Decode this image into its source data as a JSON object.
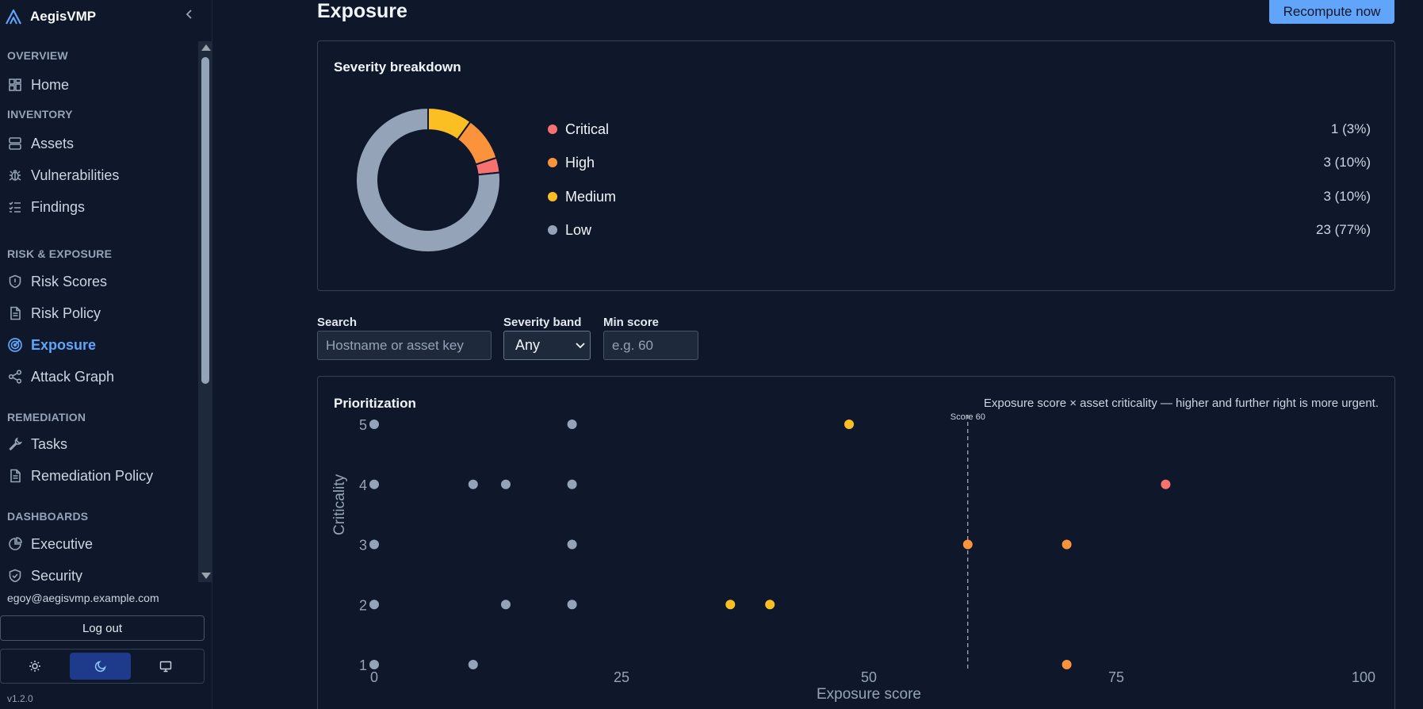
{
  "brand": {
    "name": "AegisVMP",
    "collapse_icon": "chevron-left-icon"
  },
  "sidebar": {
    "sections": [
      {
        "label": "OVERVIEW",
        "items": [
          {
            "label": "Home",
            "icon": "dashboard-grid-icon"
          }
        ]
      },
      {
        "label": "INVENTORY",
        "items": [
          {
            "label": "Assets",
            "icon": "server-icon"
          },
          {
            "label": "Vulnerabilities",
            "icon": "bug-icon"
          },
          {
            "label": "Findings",
            "icon": "checklist-icon"
          }
        ]
      },
      {
        "label": "RISK & EXPOSURE",
        "items": [
          {
            "label": "Risk Scores",
            "icon": "shield-alert-icon"
          },
          {
            "label": "Risk Policy",
            "icon": "document-icon"
          },
          {
            "label": "Exposure",
            "icon": "radar-icon",
            "active": true
          },
          {
            "label": "Attack Graph",
            "icon": "share-graph-icon"
          }
        ]
      },
      {
        "label": "REMEDIATION",
        "items": [
          {
            "label": "Tasks",
            "icon": "wrench-icon"
          },
          {
            "label": "Remediation Policy",
            "icon": "document-icon"
          }
        ]
      },
      {
        "label": "DASHBOARDS",
        "items": [
          {
            "label": "Executive",
            "icon": "pie-chart-icon"
          },
          {
            "label": "Security",
            "icon": "shield-check-icon"
          }
        ]
      }
    ],
    "user_email": "egoy@aegisvmp.example.com",
    "logout_label": "Log out",
    "theme_options": [
      "sun-icon",
      "moon-icon",
      "monitor-icon"
    ],
    "theme_active": "moon-icon",
    "version": "v1.2.0"
  },
  "header": {
    "title": "Exposure",
    "recompute_label": "Recompute now"
  },
  "severity": {
    "title": "Severity breakdown",
    "colors": {
      "critical": "#f87171",
      "high": "#fb923c",
      "medium": "#fbbf24",
      "low": "#94a3b8"
    },
    "rows": [
      {
        "label": "Critical",
        "value": "1 (3%)",
        "count": 1,
        "color": "#f87171"
      },
      {
        "label": "High",
        "value": "3 (10%)",
        "count": 3,
        "color": "#fb923c"
      },
      {
        "label": "Medium",
        "value": "3 (10%)",
        "count": 3,
        "color": "#fbbf24"
      },
      {
        "label": "Low",
        "value": "23 (77%)",
        "count": 23,
        "color": "#94a3b8"
      }
    ]
  },
  "filters": {
    "search_label": "Search",
    "search_placeholder": "Hostname or asset key",
    "band_label": "Severity band",
    "band_value": "Any",
    "min_label": "Min score",
    "min_placeholder": "e.g. 60"
  },
  "prioritization": {
    "title": "Prioritization",
    "subtitle": "Exposure score × asset criticality — higher and further right is more urgent."
  },
  "chart_data": {
    "type": "scatter",
    "xlabel": "Exposure score",
    "ylabel": "Criticality",
    "xlim": [
      0,
      100
    ],
    "ylim": [
      1,
      5
    ],
    "xticks": [
      0,
      25,
      50,
      75,
      100
    ],
    "yticks": [
      1,
      2,
      3,
      4,
      5
    ],
    "threshold": {
      "x": 60,
      "label": "Score 60"
    },
    "points": [
      {
        "x": 0,
        "y": 5,
        "band": "low"
      },
      {
        "x": 20,
        "y": 5,
        "band": "low"
      },
      {
        "x": 48,
        "y": 5,
        "band": "medium"
      },
      {
        "x": 0,
        "y": 4,
        "band": "low"
      },
      {
        "x": 10,
        "y": 4,
        "band": "low"
      },
      {
        "x": 13.3,
        "y": 4,
        "band": "low"
      },
      {
        "x": 20,
        "y": 4,
        "band": "low"
      },
      {
        "x": 80,
        "y": 4,
        "band": "critical"
      },
      {
        "x": 0,
        "y": 3,
        "band": "low"
      },
      {
        "x": 20,
        "y": 3,
        "band": "low"
      },
      {
        "x": 60,
        "y": 3,
        "band": "high"
      },
      {
        "x": 70,
        "y": 3,
        "band": "high"
      },
      {
        "x": 0,
        "y": 2,
        "band": "low"
      },
      {
        "x": 13.3,
        "y": 2,
        "band": "low"
      },
      {
        "x": 20,
        "y": 2,
        "band": "low"
      },
      {
        "x": 36,
        "y": 2,
        "band": "medium"
      },
      {
        "x": 40,
        "y": 2,
        "band": "medium"
      },
      {
        "x": 0,
        "y": 1,
        "band": "low"
      },
      {
        "x": 10,
        "y": 1,
        "band": "low"
      },
      {
        "x": 70,
        "y": 1,
        "band": "high"
      }
    ]
  }
}
